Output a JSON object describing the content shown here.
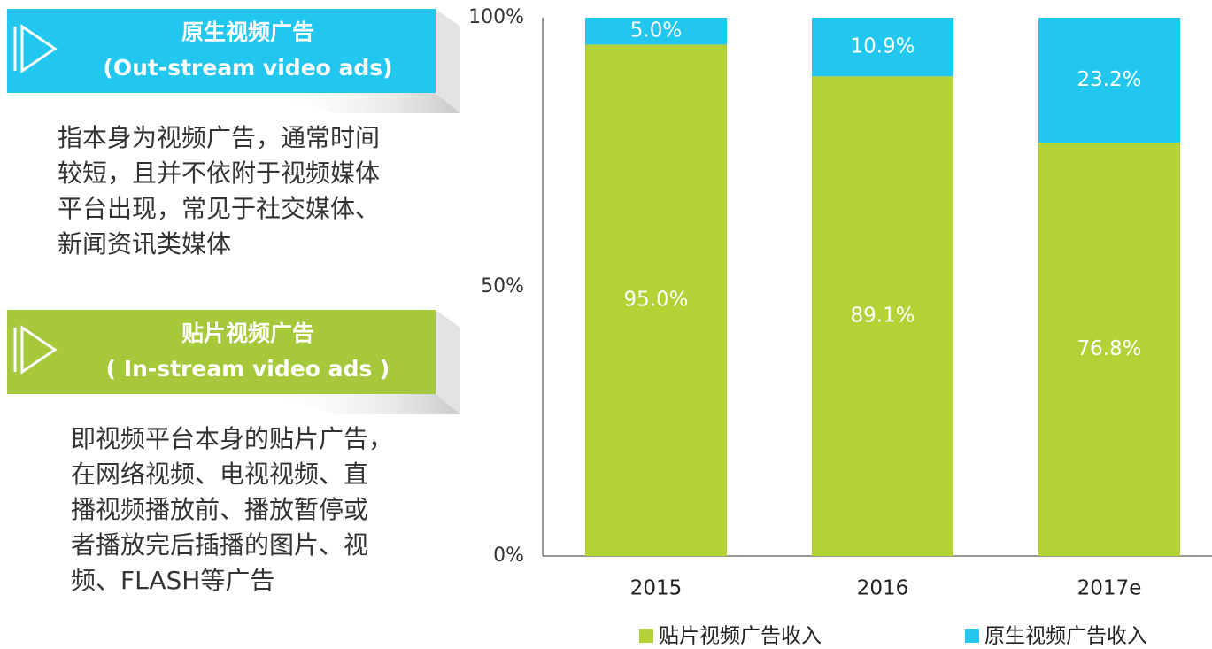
{
  "panels": [
    {
      "title": "原生视频广告",
      "subtitle": "(Out-stream video ads)",
      "color": "#22c7f0",
      "body": [
        "指本身为视频广告，通常时间",
        "较短，且并不依附于视频媒体",
        "平台出现，常见于社交媒体、",
        "新闻资讯类媒体"
      ]
    },
    {
      "title": "贴片视频广告",
      "subtitle": "( In-stream video ads )",
      "color": "#a5c93a",
      "body": [
        "即视频平台本身的贴片广告，",
        "在网络视频、电视视频、直",
        "播视频播放前、播放暂停或",
        "者播放完后插播的图片、视",
        "频、FLASH等广告"
      ]
    }
  ],
  "chart_data": {
    "type": "stacked_bar",
    "categories": [
      "2015",
      "2016",
      "2017e"
    ],
    "series": [
      {
        "name": "贴片视频广告收入",
        "color": "#b2d235",
        "values": [
          95.0,
          89.1,
          76.8
        ],
        "value_labels": [
          "95.0%",
          "89.1%",
          "76.8%"
        ]
      },
      {
        "name": "原生视频广告收入",
        "color": "#22c7f0",
        "values": [
          5.0,
          10.9,
          23.2
        ],
        "value_labels": [
          "5.0%",
          "10.9%",
          "23.2%"
        ]
      }
    ],
    "ylim": [
      0,
      100
    ],
    "yticks": [
      {
        "value": 0,
        "label": "0%"
      },
      {
        "value": 50,
        "label": "50%"
      },
      {
        "value": 100,
        "label": "100%"
      }
    ],
    "grid": false
  }
}
